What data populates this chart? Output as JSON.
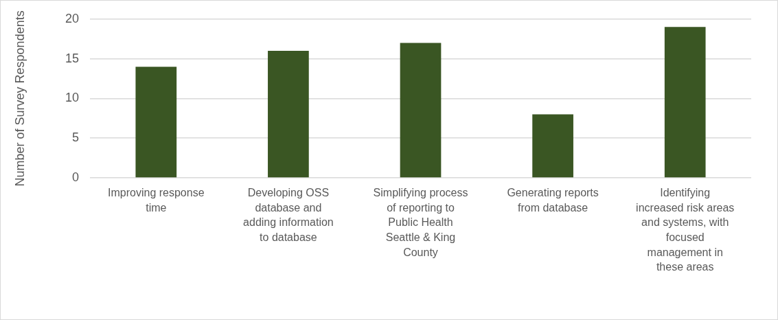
{
  "chart_data": {
    "type": "bar",
    "ylabel": "Number of Survey Respondents",
    "categories": [
      "Improving response time",
      "Developing OSS database and adding information to database",
      "Simplifying process of reporting to Public Health Seattle & King County",
      "Generating reports from database",
      "Identifying increased risk areas and systems, with focused management in these areas"
    ],
    "values": [
      14,
      16,
      17,
      8,
      19
    ],
    "color": "#3a5623",
    "ylim": [
      0,
      20
    ],
    "yticks": [
      0,
      5,
      10,
      15,
      20
    ],
    "grid": "y"
  }
}
